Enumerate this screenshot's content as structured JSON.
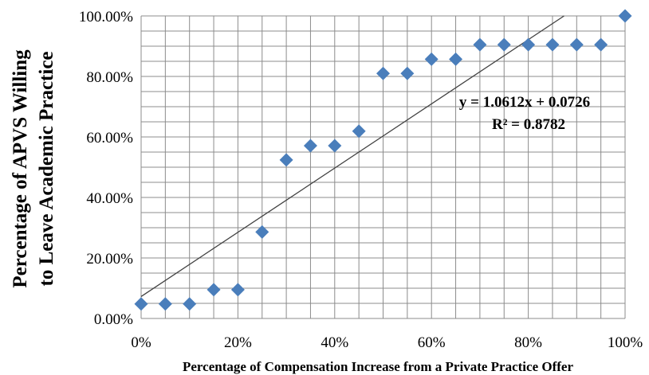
{
  "colors": {
    "marker": "#4a7ebb",
    "gridline": "#8c8c8c",
    "trendline": "#404040",
    "text": "#000000"
  },
  "chart_data": {
    "type": "scatter",
    "title": "",
    "xlabel": "Percentage of Compensation Increase from a Private Practice Offer",
    "ylabel": [
      "Percentage of APVS Willing",
      "to Leave  Academic Practice"
    ],
    "x_ticks": [
      "0%",
      "20%",
      "40%",
      "60%",
      "80%",
      "100%"
    ],
    "y_ticks": [
      "0.00%",
      "20.00%",
      "40.00%",
      "60.00%",
      "80.00%",
      "100.00%"
    ],
    "xlim": [
      0,
      1
    ],
    "ylim": [
      0,
      1
    ],
    "x_minor_step": 0.05,
    "y_minor_step": 0.05,
    "grid": true,
    "legend": "none",
    "marker": "diamond",
    "points": [
      {
        "x": 0.0,
        "y": 0.048
      },
      {
        "x": 0.05,
        "y": 0.048
      },
      {
        "x": 0.1,
        "y": 0.048
      },
      {
        "x": 0.15,
        "y": 0.095
      },
      {
        "x": 0.2,
        "y": 0.095
      },
      {
        "x": 0.25,
        "y": 0.286
      },
      {
        "x": 0.3,
        "y": 0.524
      },
      {
        "x": 0.35,
        "y": 0.571
      },
      {
        "x": 0.4,
        "y": 0.571
      },
      {
        "x": 0.45,
        "y": 0.619
      },
      {
        "x": 0.5,
        "y": 0.81
      },
      {
        "x": 0.55,
        "y": 0.81
      },
      {
        "x": 0.6,
        "y": 0.857
      },
      {
        "x": 0.65,
        "y": 0.857
      },
      {
        "x": 0.7,
        "y": 0.905
      },
      {
        "x": 0.75,
        "y": 0.905
      },
      {
        "x": 0.8,
        "y": 0.905
      },
      {
        "x": 0.85,
        "y": 0.905
      },
      {
        "x": 0.9,
        "y": 0.905
      },
      {
        "x": 0.95,
        "y": 0.905
      },
      {
        "x": 1.0,
        "y": 1.0
      }
    ],
    "trendline": {
      "type": "linear",
      "slope": 1.0612,
      "intercept": 0.0726,
      "equation_label": "y = 1.0612x + 0.0726",
      "r2_label": "R² = 0.8782"
    }
  }
}
